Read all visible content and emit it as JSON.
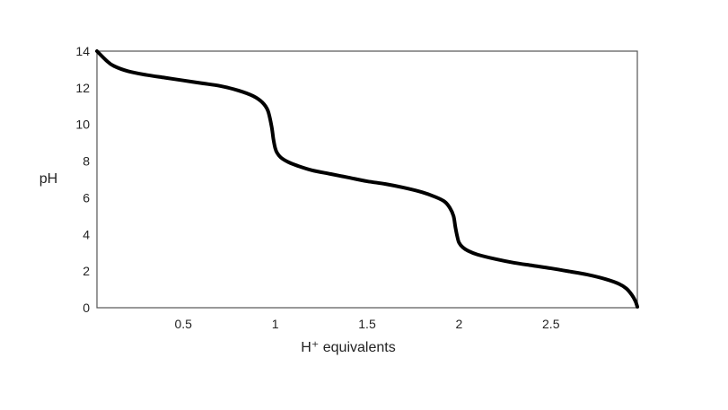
{
  "chart_data": {
    "type": "line",
    "title": "",
    "xlabel": "H⁺ equivalents",
    "ylabel": "pH",
    "xlim": [
      0.03,
      2.97
    ],
    "ylim": [
      0,
      14
    ],
    "x_ticks": [
      0.5,
      1,
      1.5,
      2,
      2.5
    ],
    "x_tick_labels": [
      "0.5",
      "1",
      "1.5",
      "2",
      "2.5"
    ],
    "y_ticks": [
      0,
      2,
      4,
      6,
      8,
      10,
      12,
      14
    ],
    "y_tick_labels": [
      "0",
      "2",
      "4",
      "6",
      "8",
      "10",
      "12",
      "14"
    ],
    "grid": false,
    "legend": "none",
    "line_color": "#000000",
    "series": [
      {
        "x": [
          0.03,
          0.08,
          0.12,
          0.2,
          0.3,
          0.4,
          0.5,
          0.6,
          0.7,
          0.8,
          0.88,
          0.93,
          0.96,
          0.98,
          0.99,
          1.0,
          1.01,
          1.03,
          1.07,
          1.12,
          1.2,
          1.3,
          1.4,
          1.5,
          1.6,
          1.7,
          1.8,
          1.87,
          1.92,
          1.95,
          1.97,
          1.98,
          1.99,
          2.0,
          2.02,
          2.05,
          2.1,
          2.2,
          2.3,
          2.4,
          2.5,
          2.6,
          2.7,
          2.8,
          2.87,
          2.91,
          2.94,
          2.96,
          2.97
        ],
        "y": [
          14.0,
          13.5,
          13.2,
          12.9,
          12.7,
          12.55,
          12.4,
          12.25,
          12.1,
          11.85,
          11.55,
          11.2,
          10.75,
          9.9,
          9.2,
          8.7,
          8.45,
          8.2,
          7.95,
          7.75,
          7.5,
          7.3,
          7.1,
          6.9,
          6.75,
          6.55,
          6.3,
          6.05,
          5.8,
          5.45,
          5.0,
          4.4,
          3.9,
          3.55,
          3.3,
          3.1,
          2.9,
          2.65,
          2.45,
          2.3,
          2.15,
          1.98,
          1.8,
          1.55,
          1.3,
          1.05,
          0.7,
          0.35,
          0.05
        ]
      }
    ]
  }
}
